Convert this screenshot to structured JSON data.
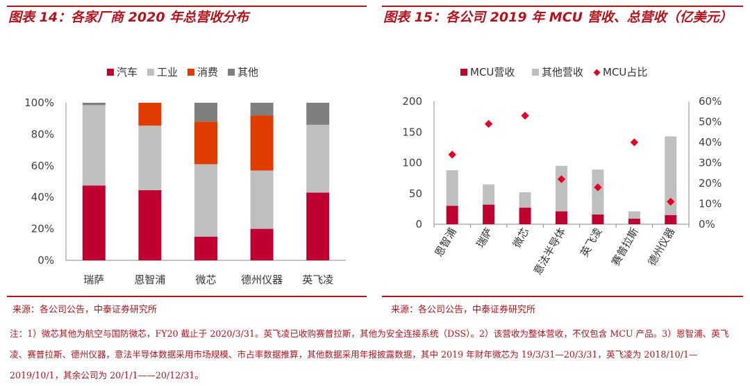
{
  "left_title": "图表 14：各家厂商 2020 年总营收分布",
  "right_title": "图表 15：各公司 2019 年 MCU 营收、总营收（亿美元）",
  "left_source": "来源：各公司公告，中泰证券研究所",
  "right_source": "来源：各公司公告，中泰证券研究所",
  "footnote": "注：1）微芯其他为航空与国防微芯，FY20 截止于 2020/3/31。英飞凌已收购赛普拉斯，其他为安全连接系统（DSS）。2）该营收为整体营收，不仅包含 MCU 产品。3）恩智浦、英飞凌、赛普拉斯、德州仪器，意法半导体数据采用市场规模、市占率数据推算，其他数据采用年报披露数据，其中 2019 年财年微芯为 19/3/31—20/3/31，英飞凌为 2018/10/1—2019/10/1，其余公司为 20/1/1——20/12/31。",
  "colors": {
    "red": "#c00031",
    "gray": "#bfbfbf",
    "orange": "#e03c00",
    "dark": "#7f7f7f",
    "accent": "#b5121b"
  },
  "chart_data": [
    {
      "type": "bar",
      "stacked": true,
      "categories": [
        "瑞萨",
        "恩智浦",
        "微芯",
        "德州仪器",
        "英飞凌"
      ],
      "series": [
        {
          "name": "汽车",
          "values": [
            47.5,
            44.5,
            15,
            20,
            43
          ]
        },
        {
          "name": "工业",
          "values": [
            51,
            41,
            46,
            37,
            43
          ]
        },
        {
          "name": "消费",
          "values": [
            0,
            14.5,
            27,
            35,
            0
          ]
        },
        {
          "name": "其他",
          "values": [
            1.5,
            0,
            12,
            8,
            14
          ]
        }
      ],
      "ylim": [
        0,
        100
      ],
      "yticks": [
        "0%",
        "20%",
        "40%",
        "60%",
        "80%",
        "100%"
      ],
      "legend": "top"
    },
    {
      "type": "bar",
      "stacked": true,
      "categories": [
        "恩智浦",
        "瑞萨",
        "微芯",
        "意法半导体",
        "英飞凌",
        "赛普拉斯",
        "德州仪器"
      ],
      "series": [
        {
          "name": "MCU营收",
          "values": [
            30,
            32,
            27,
            21,
            16,
            9,
            15
          ]
        },
        {
          "name": "其他营收",
          "values": [
            58,
            33,
            25,
            74,
            73,
            12,
            128
          ]
        },
        {
          "name": "MCU占比",
          "axis": "right",
          "values": [
            34,
            49,
            53,
            22,
            18,
            40,
            11
          ]
        }
      ],
      "ylim_left": [
        0,
        200
      ],
      "ylim_right": [
        0,
        60
      ],
      "yticks_left": [
        "0",
        "50",
        "100",
        "150",
        "200"
      ],
      "yticks_right": [
        "0%",
        "10%",
        "20%",
        "30%",
        "40%",
        "50%",
        "60%"
      ],
      "legend": "top"
    }
  ]
}
